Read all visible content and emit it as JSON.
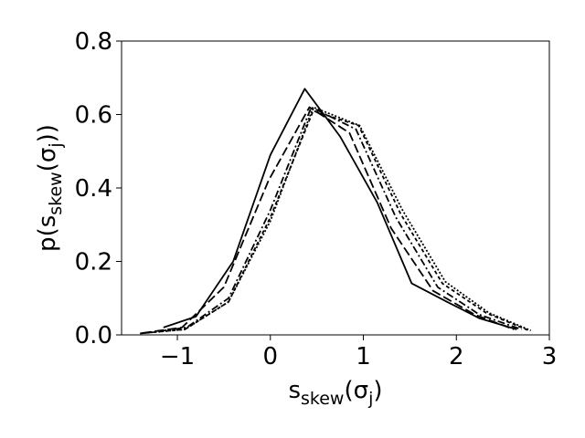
{
  "chart_data": {
    "type": "line",
    "title": "",
    "xlabel": {
      "base": "s",
      "sub": "skew",
      "rest": "(σ",
      "rest_sub": "j",
      "close": ")"
    },
    "ylabel": {
      "base": "p(s",
      "sub": "skew",
      "rest": "(σ",
      "rest_sub": "j",
      "close": "))"
    },
    "xlim": [
      -1.6,
      3.0
    ],
    "ylim": [
      0.0,
      0.8
    ],
    "xticks": [
      -1,
      0,
      1,
      2,
      3
    ],
    "xtick_labels": [
      "−1",
      "0",
      "1",
      "2",
      "3"
    ],
    "yticks": [
      0.0,
      0.2,
      0.4,
      0.6,
      0.8
    ],
    "ytick_labels": [
      "0.0",
      "0.2",
      "0.4",
      "0.6",
      "0.8"
    ],
    "grid": false,
    "legend": "none",
    "series": [
      {
        "dash": "solid",
        "color": "#000000",
        "x": [
          -1.15,
          -0.8,
          -0.4,
          0.0,
          0.37,
          0.75,
          1.15,
          1.52,
          1.9,
          2.25,
          2.65
        ],
        "y": [
          0.02,
          0.05,
          0.2,
          0.49,
          0.67,
          0.54,
          0.36,
          0.14,
          0.09,
          0.045,
          0.015
        ]
      },
      {
        "dash": "dashed",
        "color": "#000000",
        "x": [
          -1.38,
          -0.95,
          -0.5,
          -0.02,
          0.42,
          0.85,
          1.3,
          1.75,
          2.2,
          2.62
        ],
        "y": [
          0.005,
          0.02,
          0.13,
          0.42,
          0.62,
          0.55,
          0.29,
          0.12,
          0.055,
          0.015
        ]
      },
      {
        "dash": "dashdot",
        "color": "#000000",
        "x": [
          -1.35,
          -0.9,
          -0.45,
          0.0,
          0.44,
          0.92,
          1.35,
          1.8,
          2.25,
          2.7
        ],
        "y": [
          0.005,
          0.02,
          0.1,
          0.34,
          0.62,
          0.56,
          0.32,
          0.13,
          0.055,
          0.015
        ]
      },
      {
        "dash": "dotted-long",
        "color": "#000000",
        "x": [
          -1.4,
          -0.92,
          -0.45,
          0.0,
          0.46,
          0.95,
          1.4,
          1.85,
          2.32,
          2.78
        ],
        "y": [
          0.004,
          0.015,
          0.09,
          0.32,
          0.61,
          0.57,
          0.33,
          0.14,
          0.06,
          0.012
        ]
      },
      {
        "dash": "dotted",
        "color": "#000000",
        "x": [
          -1.4,
          -0.92,
          -0.45,
          0.0,
          0.46,
          0.96,
          1.42,
          1.88,
          2.35,
          2.8
        ],
        "y": [
          0.004,
          0.015,
          0.09,
          0.31,
          0.62,
          0.57,
          0.34,
          0.145,
          0.06,
          0.012
        ]
      }
    ]
  }
}
